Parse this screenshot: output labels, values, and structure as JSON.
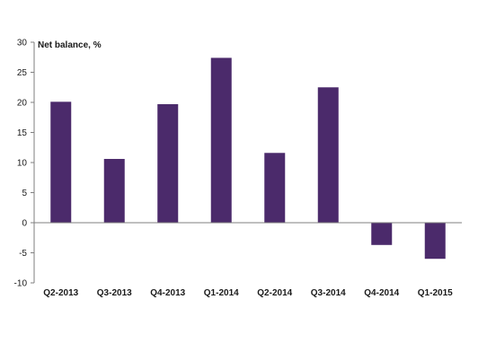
{
  "chart_data": {
    "type": "bar",
    "title": "",
    "xlabel": "",
    "ylabel": "Net balance, %",
    "ylim": [
      -10,
      30
    ],
    "yticks": [
      30,
      25,
      20,
      15,
      10,
      5,
      0,
      -5,
      -10
    ],
    "categories": [
      "Q2-2013",
      "Q3-2013",
      "Q4-2013",
      "Q1-2014",
      "Q2-2014",
      "Q3-2014",
      "Q4-2014",
      "Q1-2015"
    ],
    "values": [
      20.1,
      10.6,
      19.7,
      27.4,
      11.6,
      22.5,
      -3.7,
      -6.0
    ],
    "grid": false,
    "legend": "none",
    "bar_color": "#4b2a6b",
    "axis_color": "#7f7f7f"
  }
}
